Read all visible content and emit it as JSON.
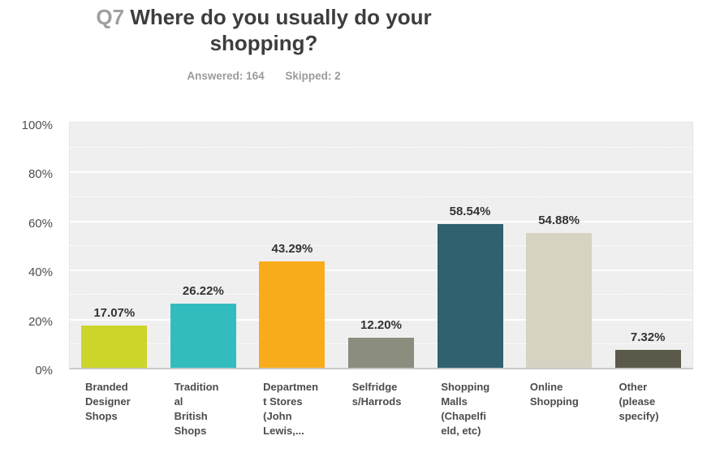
{
  "title": {
    "prefix": "Q7",
    "text": "Where do you usually do your\nshopping?"
  },
  "stats": {
    "answered": "Answered: 164",
    "skipped": "Skipped: 2"
  },
  "chart_data": {
    "type": "bar",
    "title": "Q7 Where do you usually do your shopping?",
    "answered_count": 164,
    "skipped_count": 2,
    "categories": [
      "Branded Designer Shops",
      "Traditional British Shops",
      "Department Stores (John Lewis,...",
      "Selfridges/Harrods",
      "Shopping Malls (Chapelfield, etc)",
      "Online Shopping",
      "Other (please specify)"
    ],
    "values": [
      17.07,
      26.22,
      43.29,
      12.2,
      58.54,
      54.88,
      7.32
    ],
    "value_labels": [
      "17.07%",
      "26.22%",
      "43.29%",
      "12.20%",
      "58.54%",
      "54.88%",
      "7.32%"
    ],
    "bar_colors": [
      "#ccd52a",
      "#33bcbe",
      "#f8ac1c",
      "#8b8d7e",
      "#2f616f",
      "#d6d3c2",
      "#5b594a"
    ],
    "speckled_bars": [
      5
    ],
    "x_tick_lines": [
      "Branded\nDesigner\nShops",
      "Tradition\nal\nBritish\nShops",
      "Departmen\nt Stores\n(John\nLewis,...",
      "Selfridge\ns/Harrods",
      "Shopping\nMalls\n(Chapelfi\neld, etc)",
      "Online\nShopping",
      "Other\n(please\nspecify)"
    ],
    "y_ticks": [
      "0%",
      "20%",
      "40%",
      "60%",
      "80%",
      "100%"
    ],
    "ylim": [
      0,
      100
    ],
    "xlabel": "",
    "ylabel": "",
    "legend": "none",
    "grid": {
      "minor_step": 10,
      "major_step": 20,
      "color": "#ffffff"
    },
    "plot_bg": "#f0efef",
    "axis_line_color": "#c9c9c9"
  }
}
